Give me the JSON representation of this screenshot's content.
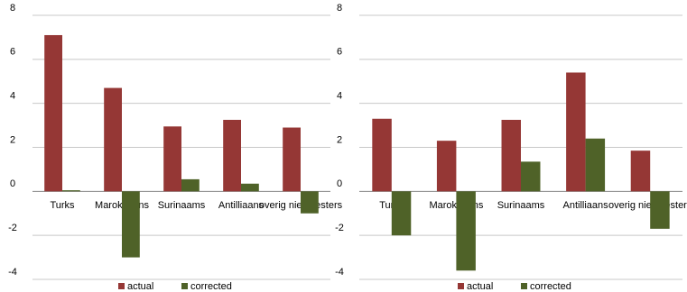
{
  "chart_data": [
    {
      "type": "bar",
      "categories": [
        "Turks",
        "Marokkaans",
        "Surinaams",
        "Antilliaans",
        "overig niet-westers"
      ],
      "series": [
        {
          "name": "actual",
          "color": "#953735",
          "values": [
            7.1,
            4.7,
            2.95,
            3.25,
            2.9
          ]
        },
        {
          "name": "corrected",
          "color": "#4f6228",
          "values": [
            0.05,
            -3.0,
            0.55,
            0.35,
            -1.0
          ]
        }
      ],
      "ylim": [
        -4,
        8
      ],
      "yticks": [
        -4,
        -2,
        0,
        2,
        4,
        6,
        8
      ],
      "grid": true
    },
    {
      "type": "bar",
      "categories": [
        "Turks",
        "Marokkaans",
        "Surinaams",
        "Antilliaans",
        "overig niet-westers"
      ],
      "series": [
        {
          "name": "actual",
          "color": "#953735",
          "values": [
            3.3,
            2.3,
            3.25,
            5.4,
            1.85
          ]
        },
        {
          "name": "corrected",
          "color": "#4f6228",
          "values": [
            -2.0,
            -3.6,
            1.35,
            2.4,
            -1.7
          ]
        }
      ],
      "ylim": [
        -4,
        8
      ],
      "yticks": [
        -4,
        -2,
        0,
        2,
        4,
        6,
        8
      ],
      "grid": true
    }
  ]
}
